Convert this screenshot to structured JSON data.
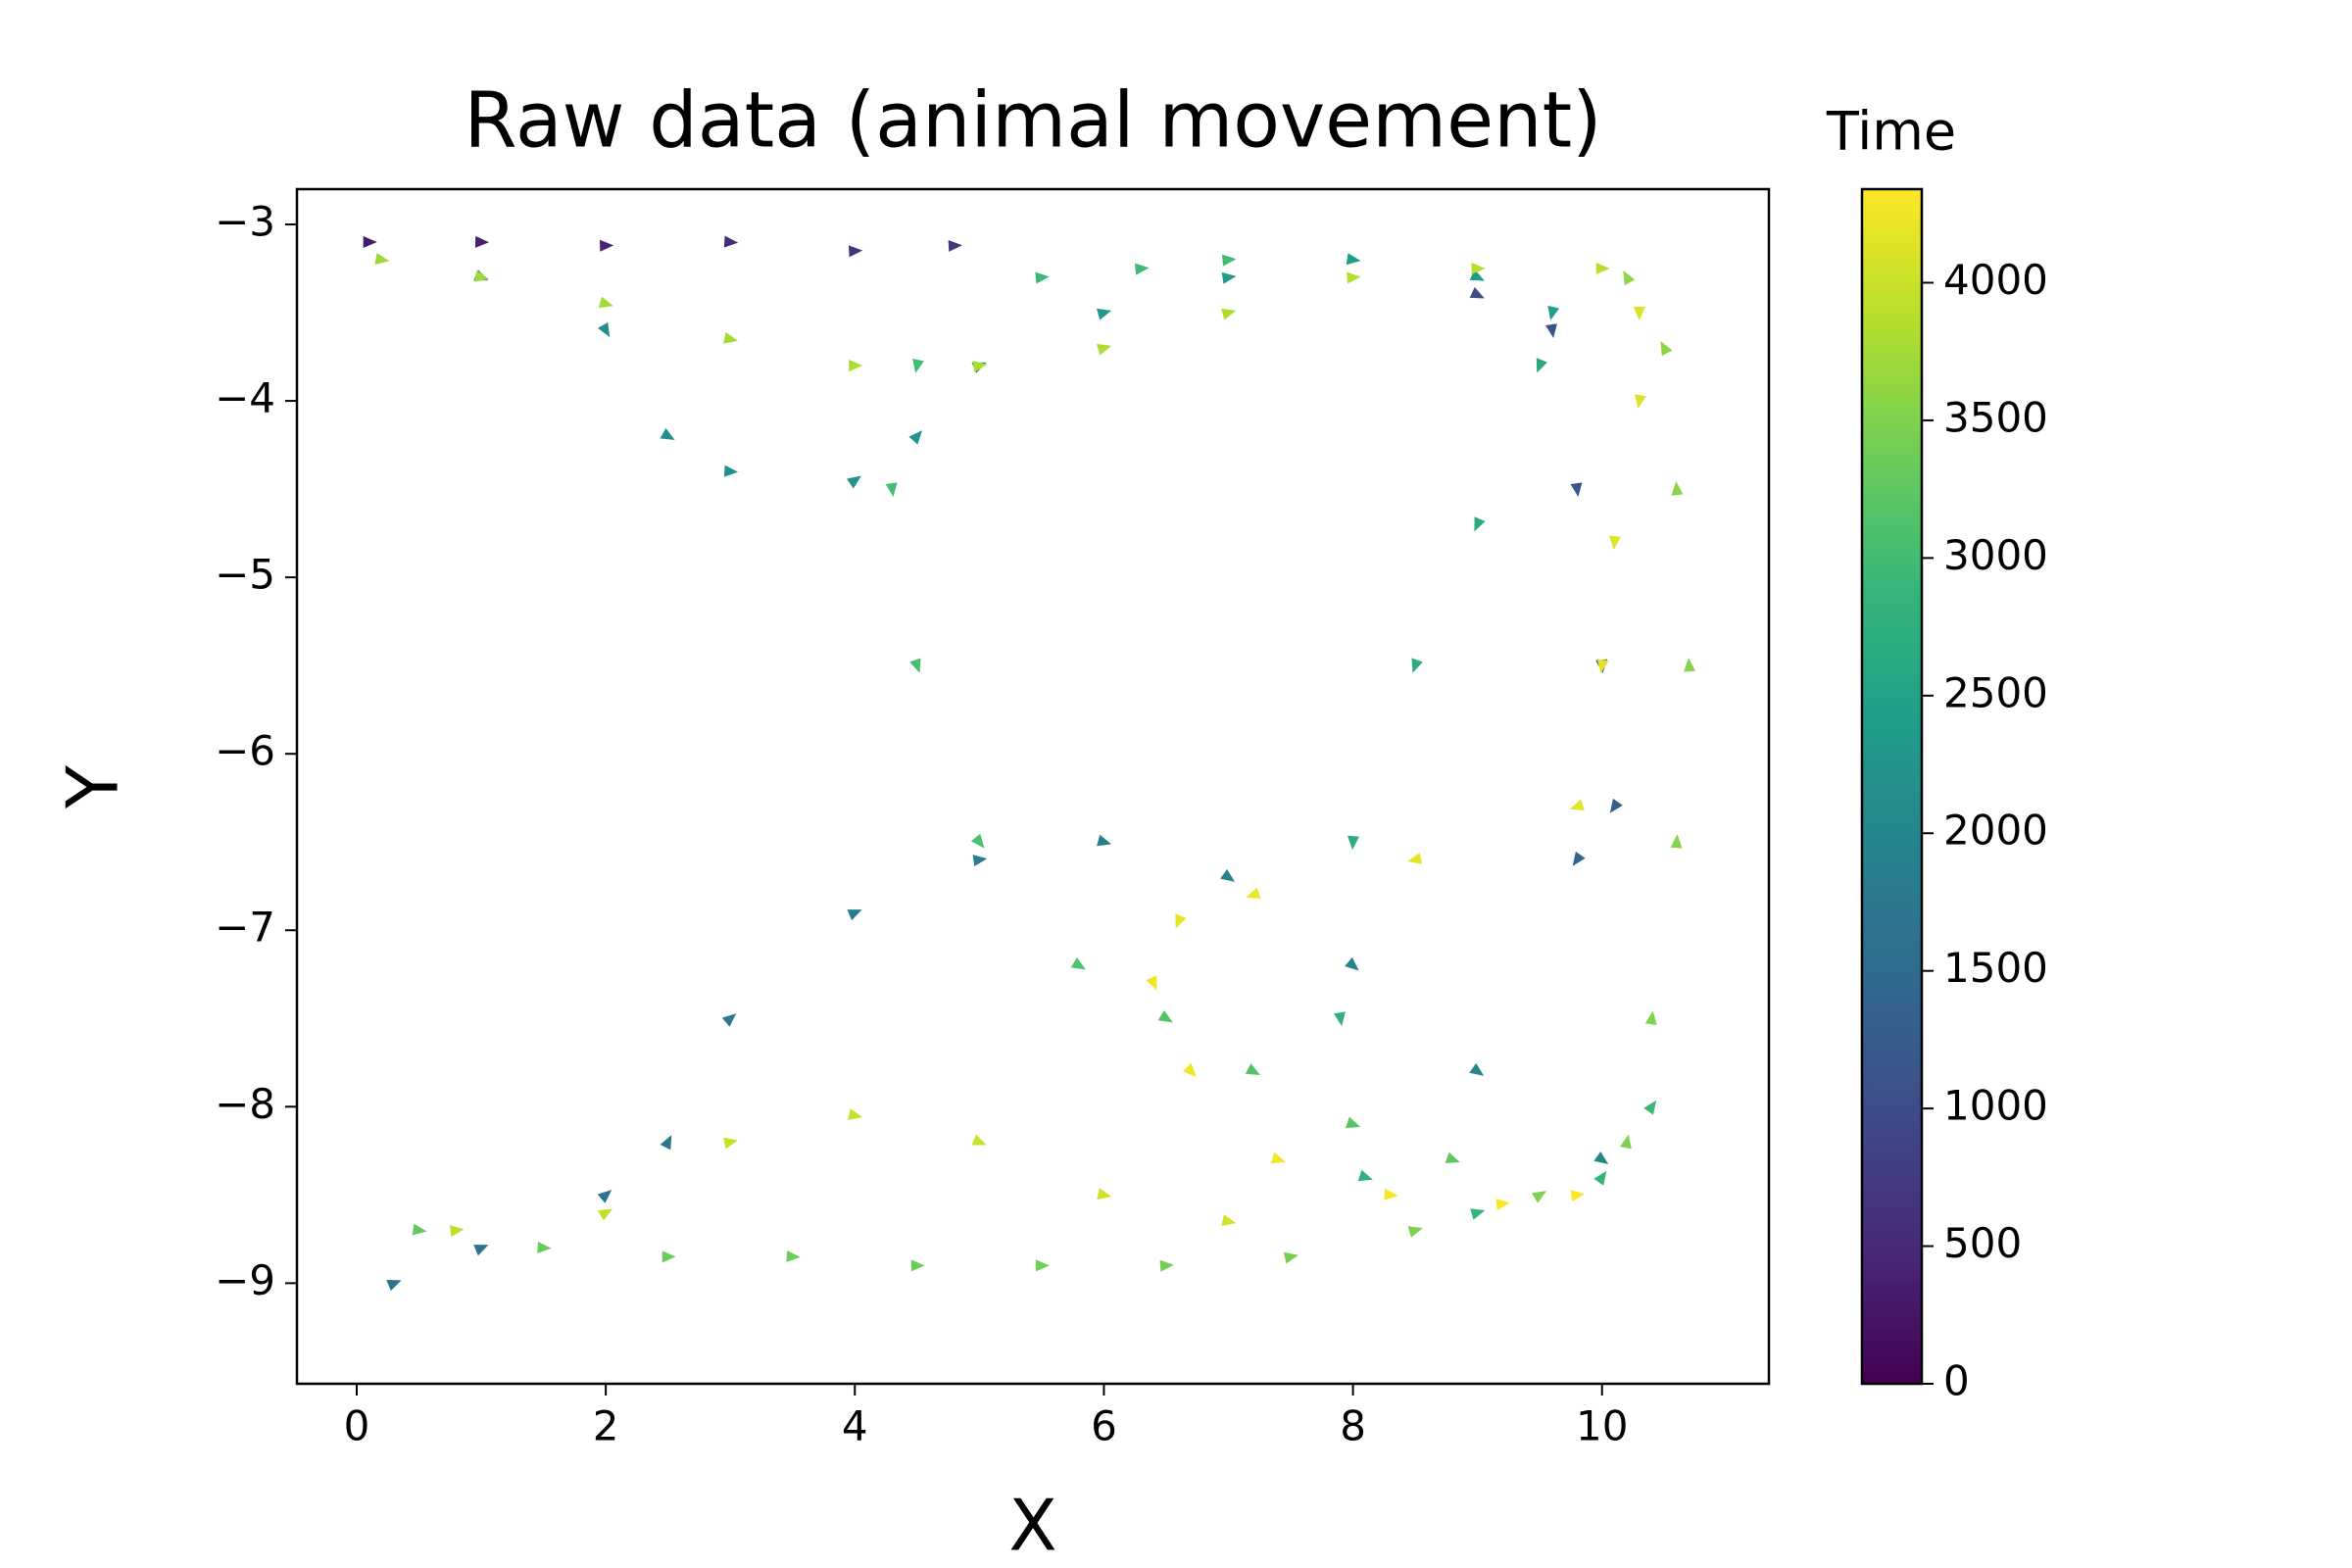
{
  "chart_data": {
    "type": "quiver",
    "title": "Raw data (animal movement)",
    "xlabel": "X",
    "ylabel": "Y",
    "colorbar_label": "Time",
    "colormap": "viridis",
    "xlim": [
      -0.48,
      11.34
    ],
    "ylim": [
      -9.57,
      -2.8
    ],
    "clim": [
      0,
      4340
    ],
    "xticks": [
      0,
      2,
      4,
      6,
      8,
      10
    ],
    "yticks": [
      {
        "value": -3,
        "label": "−3"
      },
      {
        "value": -4,
        "label": "−4"
      },
      {
        "value": -5,
        "label": "−5"
      },
      {
        "value": -6,
        "label": "−6"
      },
      {
        "value": -7,
        "label": "−7"
      },
      {
        "value": -8,
        "label": "−8"
      },
      {
        "value": -9,
        "label": "−9"
      }
    ],
    "cticks": [
      0,
      500,
      1000,
      1500,
      2000,
      2500,
      3000,
      3500,
      4000
    ],
    "x": [
      0.1,
      1,
      2,
      3,
      4,
      4.8,
      9,
      9.6,
      9.8,
      10,
      10.1,
      9.8,
      0.3,
      1,
      2,
      2.5,
      3,
      4,
      5,
      6,
      7,
      8,
      9,
      10,
      1,
      2,
      2.5,
      3,
      4,
      4.5,
      5,
      6,
      7,
      8,
      9,
      9.6,
      9.5,
      9,
      8.5,
      8,
      7.9,
      8.1,
      9,
      10,
      10.4,
      5.5,
      6.3,
      7,
      4.5,
      4.3,
      4.5,
      5,
      5.8,
      6.5,
      7.2,
      8,
      8.8,
      0.5,
      1.5,
      2.5,
      3.5,
      4.5,
      5.5,
      6.5,
      7.5,
      8.5,
      9.5,
      10.2,
      10.4,
      10.6,
      10.7,
      10.6,
      10.5,
      10.2,
      0.2,
      1,
      2,
      3,
      4,
      5,
      6,
      7,
      8,
      9,
      10,
      0.8,
      2,
      3,
      4,
      5,
      6,
      7,
      10.3,
      10.3,
      10.1,
      10,
      9.8,
      8.5,
      7.2,
      6.6,
      6.4,
      6.7,
      7.4,
      8.3,
      9.2,
      9.8
    ],
    "y": [
      -3.1,
      -3.1,
      -3.12,
      -3.1,
      -3.15,
      -3.12,
      -3.4,
      -3.6,
      -4.5,
      -5.5,
      -6.3,
      -6.6,
      -9,
      -8.8,
      -8.5,
      -8.2,
      -7.5,
      -6.9,
      -6.6,
      -6.5,
      -6.7,
      -7.2,
      -7.8,
      -8.3,
      -3.3,
      -3.6,
      -4.2,
      -4.4,
      -4.45,
      -4.2,
      -3.8,
      -3.5,
      -3.3,
      -3.2,
      -3.3,
      -3.5,
      -3.8,
      -4.7,
      -5.5,
      -6.5,
      -7.5,
      -8.4,
      -8.6,
      -8.4,
      -8,
      -3.3,
      -3.25,
      -3.2,
      -3.8,
      -4.5,
      -5.5,
      -6.5,
      -7.2,
      -7.5,
      -7.8,
      -8.1,
      -8.3,
      -8.7,
      -8.8,
      -8.85,
      -8.85,
      -8.9,
      -8.9,
      -8.9,
      -8.85,
      -8.7,
      -8.5,
      -8.2,
      -7.5,
      -6.5,
      -5.5,
      -4.5,
      -3.7,
      -3.3,
      -3.2,
      -3.3,
      -3.45,
      -3.65,
      -3.8,
      -3.8,
      -3.7,
      -3.5,
      -3.3,
      -3.25,
      -3.25,
      -8.7,
      -8.6,
      -8.2,
      -8.05,
      -8.2,
      -8.5,
      -8.65,
      -3.5,
      -4,
      -4.8,
      -5.5,
      -6.3,
      -6.6,
      -6.8,
      -6.95,
      -7.3,
      -7.8,
      -8.3,
      -8.5,
      -8.55,
      -8.5
    ],
    "c": [
      300,
      380,
      460,
      540,
      620,
      700,
      1000,
      1080,
      1160,
      1240,
      1320,
      1400,
      1600,
      1640,
      1680,
      1720,
      1760,
      1800,
      1840,
      1880,
      1920,
      1960,
      2000,
      2040,
      2100,
      2130,
      2160,
      2190,
      2220,
      2250,
      2280,
      2310,
      2340,
      2370,
      2400,
      2430,
      2600,
      2640,
      2680,
      2720,
      2760,
      2800,
      2840,
      2880,
      2920,
      2950,
      2970,
      2990,
      3000,
      3030,
      3060,
      3090,
      3120,
      3150,
      3180,
      3210,
      3240,
      3300,
      3320,
      3340,
      3360,
      3380,
      3400,
      3420,
      3440,
      3460,
      3480,
      3500,
      3520,
      3540,
      3560,
      3580,
      3600,
      3620,
      3700,
      3720,
      3740,
      3760,
      3780,
      3800,
      3820,
      3840,
      3860,
      3880,
      3900,
      3920,
      3940,
      3960,
      3980,
      4000,
      4020,
      4040,
      4100,
      4118,
      4136,
      4154,
      4172,
      4190,
      4208,
      4226,
      4244,
      4262,
      4280,
      4298,
      4316,
      4334
    ]
  }
}
